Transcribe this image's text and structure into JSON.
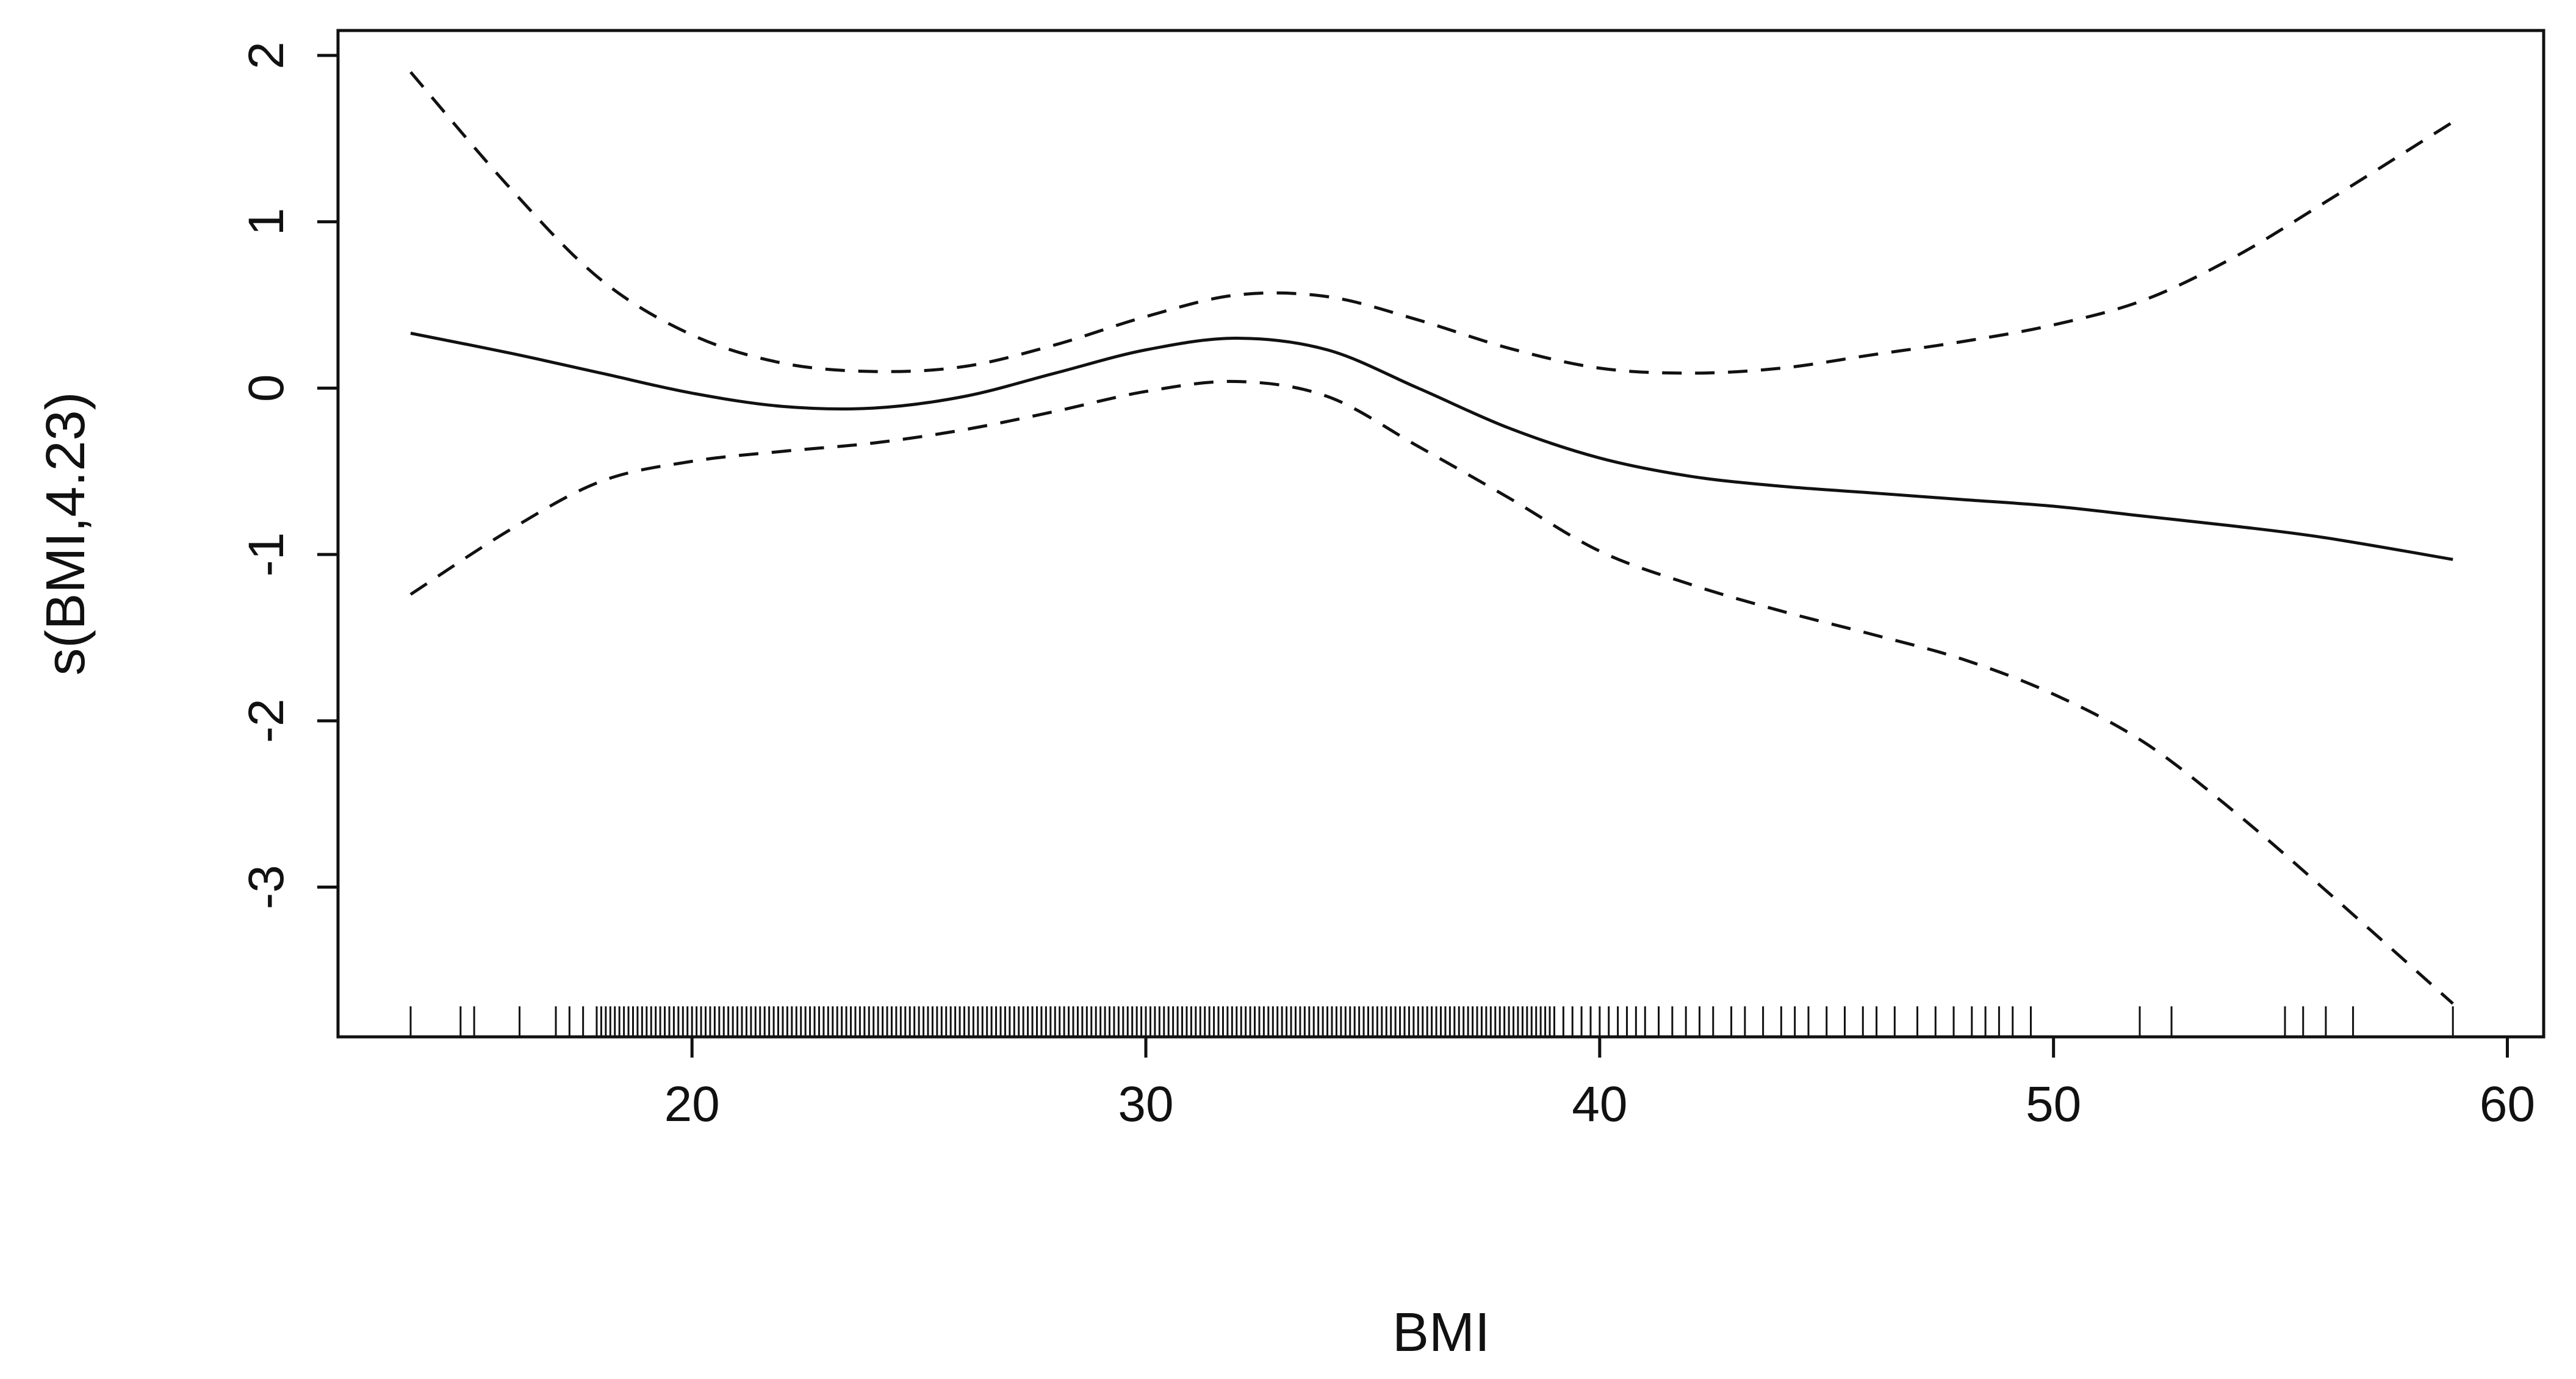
{
  "chart_data": {
    "type": "line",
    "title": "",
    "xlabel": "BMI",
    "ylabel": "s(BMI,4.23)",
    "xlim": [
      12.2,
      60.8
    ],
    "ylim": [
      -3.9,
      2.15
    ],
    "x_ticks": [
      20,
      30,
      40,
      50,
      60
    ],
    "y_ticks": [
      -3,
      -2,
      -1,
      0,
      1,
      2
    ],
    "x_tick_labels": [
      "20",
      "30",
      "40",
      "50",
      "60"
    ],
    "y_tick_labels": [
      "-3",
      "-2",
      "-1",
      "0",
      "1",
      "2"
    ],
    "grid": false,
    "legend": "none",
    "colors": {
      "line": "#111111",
      "frame": "#111111",
      "background": "#ffffff"
    },
    "series": [
      {
        "role": "smooth-estimate",
        "line_style": "solid",
        "x": [
          13.8,
          16,
          18,
          20,
          22,
          24,
          26,
          28,
          30,
          32,
          34,
          36,
          38,
          40,
          42,
          44,
          46,
          48,
          50,
          52,
          54,
          56,
          58.8
        ],
        "y": [
          0.33,
          0.21,
          0.09,
          -0.03,
          -0.11,
          -0.12,
          -0.05,
          0.09,
          0.23,
          0.3,
          0.23,
          0.0,
          -0.24,
          -0.42,
          -0.53,
          -0.59,
          -0.63,
          -0.67,
          -0.71,
          -0.77,
          -0.83,
          -0.9,
          -1.03
        ]
      },
      {
        "role": "upper-band",
        "line_style": "dashed",
        "x": [
          13.8,
          16,
          18,
          20,
          22,
          24,
          26,
          28,
          30,
          32,
          34,
          36,
          38,
          40,
          42,
          44,
          46,
          48,
          50,
          52,
          54,
          56,
          58.8
        ],
        "y": [
          1.9,
          1.2,
          0.65,
          0.32,
          0.15,
          0.1,
          0.13,
          0.26,
          0.43,
          0.56,
          0.55,
          0.41,
          0.24,
          0.12,
          0.09,
          0.12,
          0.2,
          0.28,
          0.38,
          0.53,
          0.79,
          1.12,
          1.6
        ]
      },
      {
        "role": "lower-band",
        "line_style": "dashed",
        "x": [
          13.8,
          16,
          18,
          20,
          22,
          24,
          26,
          28,
          30,
          32,
          34,
          36,
          38,
          40,
          42,
          44,
          46,
          48,
          50,
          52,
          54,
          56,
          58.8
        ],
        "y": [
          -1.24,
          -0.85,
          -0.56,
          -0.44,
          -0.38,
          -0.33,
          -0.25,
          -0.14,
          -0.02,
          0.04,
          -0.05,
          -0.35,
          -0.66,
          -0.98,
          -1.18,
          -1.34,
          -1.48,
          -1.63,
          -1.84,
          -2.13,
          -2.55,
          -3.02,
          -3.7
        ]
      }
    ],
    "rug": {
      "x": [
        13.8,
        14.9,
        15.2,
        16.2,
        17.0,
        17.3,
        17.6,
        17.9,
        18.0,
        18.1,
        18.2,
        18.3,
        18.4,
        18.5,
        18.6,
        18.7,
        18.8,
        18.9,
        19.0,
        19.1,
        19.2,
        19.3,
        19.4,
        19.5,
        19.6,
        19.7,
        19.8,
        19.9,
        20.0,
        20.1,
        20.2,
        20.3,
        20.4,
        20.5,
        20.6,
        20.7,
        20.8,
        20.9,
        21.0,
        21.1,
        21.2,
        21.3,
        21.4,
        21.5,
        21.6,
        21.7,
        21.8,
        21.9,
        22.0,
        22.1,
        22.2,
        22.3,
        22.4,
        22.5,
        22.6,
        22.7,
        22.8,
        22.9,
        23.0,
        23.1,
        23.2,
        23.3,
        23.4,
        23.5,
        23.6,
        23.7,
        23.8,
        23.9,
        24.0,
        24.1,
        24.2,
        24.3,
        24.4,
        24.5,
        24.6,
        24.7,
        24.8,
        24.9,
        25.0,
        25.1,
        25.2,
        25.3,
        25.4,
        25.5,
        25.6,
        25.7,
        25.8,
        25.9,
        26.0,
        26.1,
        26.2,
        26.3,
        26.4,
        26.5,
        26.6,
        26.7,
        26.8,
        26.9,
        27.0,
        27.1,
        27.2,
        27.3,
        27.4,
        27.5,
        27.6,
        27.7,
        27.8,
        27.9,
        28.0,
        28.1,
        28.2,
        28.3,
        28.4,
        28.5,
        28.6,
        28.7,
        28.8,
        28.9,
        29.0,
        29.1,
        29.2,
        29.3,
        29.4,
        29.5,
        29.6,
        29.7,
        29.8,
        29.9,
        30.0,
        30.1,
        30.2,
        30.3,
        30.4,
        30.5,
        30.6,
        30.7,
        30.8,
        30.9,
        31.0,
        31.1,
        31.2,
        31.3,
        31.4,
        31.5,
        31.6,
        31.7,
        31.8,
        31.9,
        32.0,
        32.1,
        32.2,
        32.3,
        32.4,
        32.5,
        32.6,
        32.7,
        32.8,
        32.9,
        33.0,
        33.1,
        33.2,
        33.3,
        33.4,
        33.5,
        33.6,
        33.7,
        33.8,
        33.9,
        34.0,
        34.1,
        34.2,
        34.3,
        34.4,
        34.5,
        34.6,
        34.7,
        34.8,
        34.9,
        35.0,
        35.1,
        35.2,
        35.3,
        35.4,
        35.5,
        35.6,
        35.7,
        35.8,
        35.9,
        36.0,
        36.1,
        36.2,
        36.3,
        36.4,
        36.5,
        36.6,
        36.7,
        36.8,
        36.9,
        37.0,
        37.1,
        37.2,
        37.3,
        37.4,
        37.5,
        37.6,
        37.7,
        37.8,
        37.9,
        38.0,
        38.1,
        38.2,
        38.3,
        38.4,
        38.5,
        38.6,
        38.7,
        38.8,
        38.9,
        39.0,
        39.2,
        39.4,
        39.6,
        39.8,
        40.0,
        40.2,
        40.4,
        40.6,
        40.8,
        41.0,
        41.3,
        41.6,
        41.9,
        42.2,
        42.5,
        42.9,
        43.2,
        43.6,
        44.0,
        44.3,
        44.6,
        45.0,
        45.4,
        45.8,
        46.1,
        46.5,
        47.0,
        47.4,
        47.8,
        48.2,
        48.5,
        48.8,
        49.1,
        49.5,
        51.9,
        52.6,
        55.1,
        55.5,
        56.0,
        56.6,
        58.8
      ]
    }
  }
}
